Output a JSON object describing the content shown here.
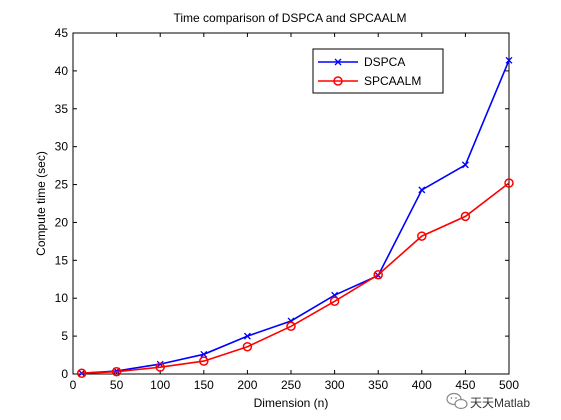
{
  "chart_data": {
    "type": "line",
    "title": "Time comparison of DSPCA and SPCAALM",
    "xlabel": "Dimension (n)",
    "ylabel": "Compute time (sec)",
    "xlim": [
      0,
      500
    ],
    "ylim": [
      0,
      45
    ],
    "x_ticks": [
      "0",
      "50",
      "100",
      "150",
      "200",
      "250",
      "300",
      "350",
      "400",
      "450",
      "500"
    ],
    "y_ticks": [
      "0",
      "5",
      "10",
      "15",
      "20",
      "25",
      "30",
      "35",
      "40",
      "45"
    ],
    "x_tick_values": [
      0,
      50,
      100,
      150,
      200,
      250,
      300,
      350,
      400,
      450,
      500
    ],
    "y_tick_values": [
      0,
      5,
      10,
      15,
      20,
      25,
      30,
      35,
      40,
      45
    ],
    "grid": false,
    "legend_position": "top-right",
    "x": [
      10,
      50,
      100,
      150,
      200,
      250,
      300,
      350,
      400,
      450,
      500
    ],
    "series": [
      {
        "name": "DSPCA",
        "color": "#0000ff",
        "marker": "x",
        "values": [
          0.1,
          0.4,
          1.3,
          2.6,
          5.0,
          7.0,
          10.4,
          13.0,
          24.3,
          27.6,
          41.4
        ]
      },
      {
        "name": "SPCAALM",
        "color": "#ff0000",
        "marker": "circle",
        "values": [
          0.1,
          0.3,
          0.9,
          1.7,
          3.6,
          6.3,
          9.6,
          13.1,
          18.2,
          20.8,
          25.2
        ]
      }
    ]
  },
  "watermark": {
    "text": "天天Matlab",
    "icon": "wechat-icon"
  }
}
